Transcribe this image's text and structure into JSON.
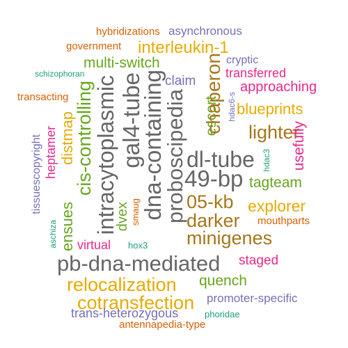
{
  "palette": {
    "green": "#1B9E77",
    "orange": "#D95F02",
    "purple": "#7570B3",
    "magenta": "#E7298A",
    "lime": "#66A61E",
    "gold": "#E6AB02",
    "brown": "#A6761D",
    "gray": "#666666"
  },
  "words": [
    {
      "text": "hybridizations",
      "color": "orange"
    },
    {
      "text": "asynchronous",
      "color": "purple"
    },
    {
      "text": "government",
      "color": "orange"
    },
    {
      "text": "interleukin-1",
      "color": "gold"
    },
    {
      "text": "multi-switch",
      "color": "lime"
    },
    {
      "text": "cryptic",
      "color": "purple"
    },
    {
      "text": "schizophoran",
      "color": "green"
    },
    {
      "text": "transferred",
      "color": "magenta"
    },
    {
      "text": "claim",
      "color": "purple"
    },
    {
      "text": "approaching",
      "color": "magenta"
    },
    {
      "text": "transacting",
      "color": "orange"
    },
    {
      "text": "blueprints",
      "color": "gold"
    },
    {
      "text": "lighter",
      "color": "brown"
    },
    {
      "text": "dl-tube",
      "color": "gray"
    },
    {
      "text": "49-bp",
      "color": "gray"
    },
    {
      "text": "tagteam",
      "color": "lime"
    },
    {
      "text": "05-kb",
      "color": "brown"
    },
    {
      "text": "explorer",
      "color": "gold"
    },
    {
      "text": "darker",
      "color": "brown"
    },
    {
      "text": "minigenes",
      "color": "brown"
    },
    {
      "text": "mouthparts",
      "color": "orange"
    },
    {
      "text": "virtual",
      "color": "magenta"
    },
    {
      "text": "hox3",
      "color": "green"
    },
    {
      "text": "pb-dna-mediated",
      "color": "gray"
    },
    {
      "text": "staged",
      "color": "magenta"
    },
    {
      "text": "relocalization",
      "color": "gold"
    },
    {
      "text": "quench",
      "color": "lime"
    },
    {
      "text": "cotransfection",
      "color": "gold"
    },
    {
      "text": "promoter-specific",
      "color": "purple"
    },
    {
      "text": "trans-heterozygous",
      "color": "purple"
    },
    {
      "text": "phoridae",
      "color": "green"
    },
    {
      "text": "antennapedia-type",
      "color": "orange"
    },
    {
      "text": "tissuescopyright",
      "color": "purple"
    },
    {
      "text": "heptamer",
      "color": "magenta"
    },
    {
      "text": "ensues",
      "color": "lime"
    },
    {
      "text": "distmap",
      "color": "gold"
    },
    {
      "text": "cis-controlling",
      "color": "lime"
    },
    {
      "text": "aschiza",
      "color": "green"
    },
    {
      "text": "intracytoplasmic",
      "color": "gray"
    },
    {
      "text": "gal4-tube",
      "color": "gray"
    },
    {
      "text": "dvex",
      "color": "lime"
    },
    {
      "text": "smaug",
      "color": "orange"
    },
    {
      "text": "dna-containing",
      "color": "gray"
    },
    {
      "text": "proboscipedia",
      "color": "gray"
    },
    {
      "text": "escort",
      "color": "lime"
    },
    {
      "text": "chaperon",
      "color": "brown"
    },
    {
      "text": "hdac6-s",
      "color": "purple"
    },
    {
      "text": "hdac3",
      "color": "green"
    },
    {
      "text": "usefully",
      "color": "magenta"
    }
  ]
}
